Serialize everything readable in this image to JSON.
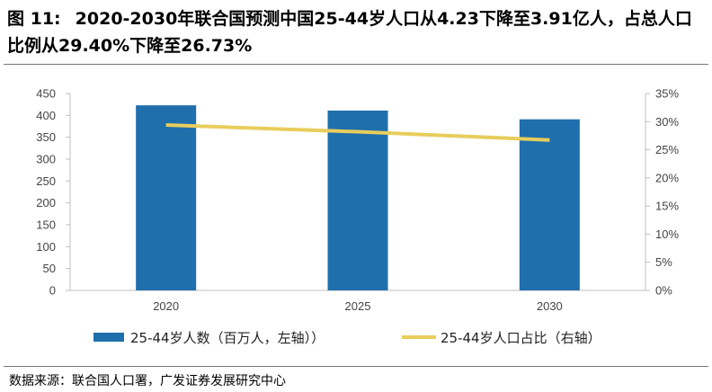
{
  "header": {
    "figure_label": "图 11:",
    "title": "2020-2030年联合国预测中国25-44岁人口从4.23下降至3.91亿人，占总人口比例从29.40%下降至26.73%"
  },
  "footer": {
    "source": "数据来源：联合国人口署，广发证券发展研究中心"
  },
  "colors": {
    "bar": "#1f6fad",
    "line": "#e8cd5c",
    "axis": "#bfbfbf"
  },
  "chart_data": {
    "type": "bar+line",
    "categories": [
      "2020",
      "2025",
      "2030"
    ],
    "series": [
      {
        "name": "25-44岁人数（百万人，左轴））",
        "type": "bar",
        "axis": "left",
        "values": [
          423,
          411,
          391
        ]
      },
      {
        "name": "25-44岁人口占比（右轴）",
        "type": "line",
        "axis": "right",
        "values": [
          29.4,
          28.2,
          26.73
        ]
      }
    ],
    "y_left": {
      "min": 0,
      "max": 450,
      "step": 50,
      "ticks": [
        "0",
        "50",
        "100",
        "150",
        "200",
        "250",
        "300",
        "350",
        "400",
        "450"
      ]
    },
    "y_right": {
      "min": 0,
      "max": 35,
      "step": 5,
      "ticks": [
        "0%",
        "5%",
        "10%",
        "15%",
        "20%",
        "25%",
        "30%",
        "35%"
      ]
    },
    "grid": false,
    "legend_position": "bottom"
  }
}
